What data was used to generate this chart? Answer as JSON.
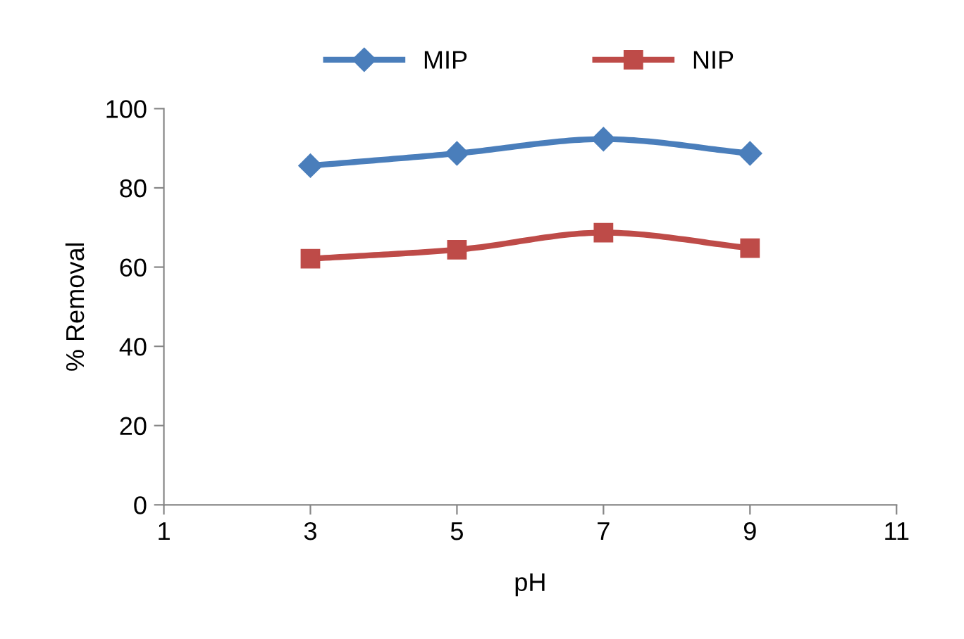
{
  "chart_data": {
    "type": "line",
    "xlabel": "pH",
    "ylabel": "% Removal",
    "x": [
      3,
      5,
      7,
      9
    ],
    "series": [
      {
        "name": "MIP",
        "color": "#4a7ebb",
        "marker": "diamond",
        "values": [
          85.6,
          88.7,
          92.3,
          88.7
        ]
      },
      {
        "name": "NIP",
        "color": "#be4b48",
        "marker": "square",
        "values": [
          62.1,
          64.4,
          68.7,
          64.8
        ]
      }
    ],
    "xlim": [
      1,
      11
    ],
    "xticks": [
      1,
      3,
      5,
      7,
      9,
      11
    ],
    "ylim": [
      0,
      100
    ],
    "yticks": [
      0,
      20,
      40,
      60,
      80,
      100
    ],
    "grid": false,
    "legend": "top",
    "line_style": "solid"
  }
}
